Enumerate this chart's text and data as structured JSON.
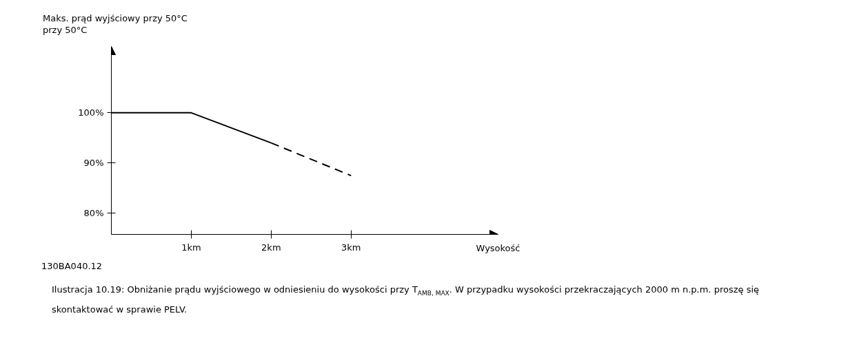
{
  "chart_data": {
    "type": "line",
    "ylabel": "Maks. prąd wyjściowy przy 50°C\nprzy 50°C",
    "xlabel": "Wysokość",
    "series": [
      {
        "color": "#000000",
        "x": [
          0,
          1,
          2
        ],
        "values": [
          100,
          100,
          94
        ],
        "line_style": "solid"
      },
      {
        "color": "#000000",
        "x": [
          2,
          3
        ],
        "values": [
          94,
          87.5
        ],
        "line_style": "dashed"
      }
    ],
    "xlim": [
      0,
      4.84
    ],
    "ylim": [
      75.8,
      113.2
    ],
    "xticks": [
      {
        "value": 1,
        "label": "1km"
      },
      {
        "value": 2,
        "label": "2km"
      },
      {
        "value": 3,
        "label": "3km"
      }
    ],
    "yticks": [
      {
        "value": 80,
        "label": "80%"
      },
      {
        "value": 90,
        "label": "90%"
      },
      {
        "value": 100,
        "label": "100%"
      }
    ],
    "grid": false,
    "marker": "none",
    "annotations": [
      "130BA040.12",
      "Ilustracja 10.19: Obniżanie prądu wyjściowego w odniesieniu do wysokości przy T$_{AMB, MAX}$. W przypadku wysokości przekraczających 2000 m n.p.m. proszę się skontaktować w sprawie PELV."
    ]
  }
}
